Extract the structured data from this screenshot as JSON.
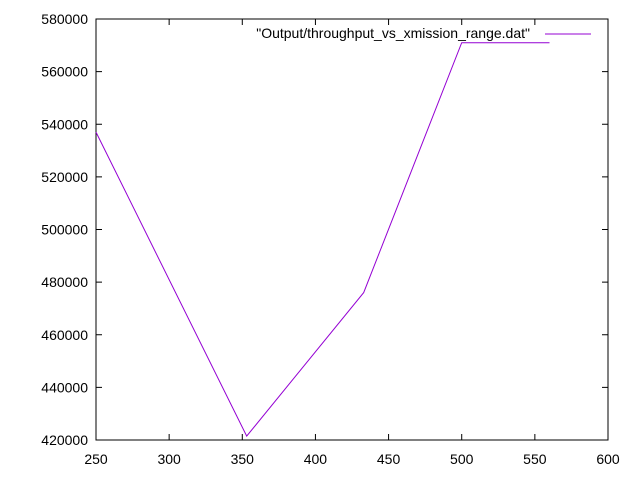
{
  "chart_data": {
    "type": "line",
    "title": "",
    "xlabel": "",
    "ylabel": "",
    "xlim": [
      250,
      600
    ],
    "ylim": [
      420000,
      580000
    ],
    "x_ticks": [
      250,
      300,
      350,
      400,
      450,
      500,
      550,
      600
    ],
    "y_ticks": [
      420000,
      440000,
      460000,
      480000,
      500000,
      520000,
      540000,
      560000,
      580000
    ],
    "grid": false,
    "legend_position": "top-right",
    "series": [
      {
        "name": "\"Output/throughput_vs_xmission_range.dat\"",
        "color": "#9400d3",
        "x": [
          250,
          353,
          433,
          500,
          560
        ],
        "y": [
          537000,
          421500,
          476000,
          571000,
          571000
        ]
      }
    ]
  }
}
